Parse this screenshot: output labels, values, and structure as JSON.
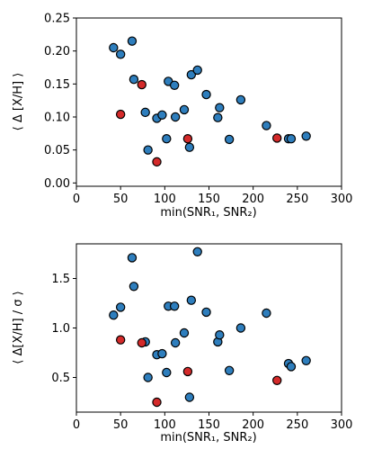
{
  "colors": {
    "blue": "#2e7ebd",
    "red": "#d42a2a"
  },
  "chart_data": [
    {
      "type": "scatter",
      "xlabel": "min(SNR₁, SNR₂)",
      "ylabel": "⟨ Δ [X/H] ⟩",
      "xlim": [
        0,
        300
      ],
      "ylim": [
        -0.005,
        0.25
      ],
      "xticks": [
        "0",
        "50",
        "100",
        "150",
        "200",
        "250",
        "300"
      ],
      "yticks": [
        "0.00",
        "0.05",
        "0.10",
        "0.15",
        "0.20",
        "0.25"
      ],
      "grid": false,
      "series": [
        {
          "color": "blue",
          "points": [
            [
              42,
              0.205
            ],
            [
              50,
              0.195
            ],
            [
              63,
              0.215
            ],
            [
              65,
              0.157
            ],
            [
              78,
              0.107
            ],
            [
              81,
              0.05
            ],
            [
              91,
              0.098
            ],
            [
              97,
              0.103
            ],
            [
              102,
              0.067
            ],
            [
              104,
              0.154
            ],
            [
              111,
              0.148
            ],
            [
              112,
              0.1
            ],
            [
              122,
              0.111
            ],
            [
              128,
              0.054
            ],
            [
              130,
              0.164
            ],
            [
              137,
              0.171
            ],
            [
              147,
              0.134
            ],
            [
              160,
              0.099
            ],
            [
              162,
              0.114
            ],
            [
              173,
              0.066
            ],
            [
              186,
              0.126
            ],
            [
              215,
              0.087
            ],
            [
              240,
              0.067
            ],
            [
              243,
              0.067
            ],
            [
              260,
              0.071
            ]
          ]
        },
        {
          "color": "red",
          "points": [
            [
              50,
              0.104
            ],
            [
              74,
              0.149
            ],
            [
              91,
              0.032
            ],
            [
              126,
              0.067
            ],
            [
              227,
              0.068
            ]
          ]
        }
      ]
    },
    {
      "type": "scatter",
      "xlabel": "min(SNR₁, SNR₂)",
      "ylabel": "⟨ Δ[X/H] / σ ⟩",
      "xlim": [
        0,
        300
      ],
      "ylim": [
        0.15,
        1.85
      ],
      "xticks": [
        "0",
        "50",
        "100",
        "150",
        "200",
        "250",
        "300"
      ],
      "yticks": [
        "0.5",
        "1.0",
        "1.5"
      ],
      "grid": false,
      "series": [
        {
          "color": "blue",
          "points": [
            [
              42,
              1.13
            ],
            [
              50,
              1.21
            ],
            [
              63,
              1.71
            ],
            [
              65,
              1.42
            ],
            [
              78,
              0.86
            ],
            [
              81,
              0.5
            ],
            [
              91,
              0.73
            ],
            [
              97,
              0.74
            ],
            [
              102,
              0.55
            ],
            [
              104,
              1.22
            ],
            [
              111,
              1.22
            ],
            [
              112,
              0.85
            ],
            [
              122,
              0.95
            ],
            [
              128,
              0.3
            ],
            [
              130,
              1.28
            ],
            [
              137,
              1.77
            ],
            [
              147,
              1.16
            ],
            [
              160,
              0.86
            ],
            [
              162,
              0.93
            ],
            [
              173,
              0.57
            ],
            [
              186,
              1.0
            ],
            [
              215,
              1.15
            ],
            [
              240,
              0.64
            ],
            [
              243,
              0.61
            ],
            [
              260,
              0.67
            ]
          ]
        },
        {
          "color": "red",
          "points": [
            [
              50,
              0.88
            ],
            [
              74,
              0.85
            ],
            [
              91,
              0.25
            ],
            [
              126,
              0.56
            ],
            [
              227,
              0.47
            ]
          ]
        }
      ]
    }
  ]
}
